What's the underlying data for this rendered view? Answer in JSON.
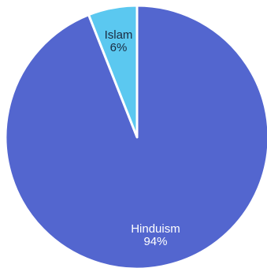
{
  "chart_data": {
    "type": "pie",
    "title": "",
    "slices": [
      {
        "label": "Hinduism",
        "value": 94,
        "display": "94%",
        "color": "#5366cf",
        "text_color": "#ffffff"
      },
      {
        "label": "Islam",
        "value": 6,
        "display": "6%",
        "color": "#5bc8f0",
        "text_color": "#1a2a40"
      }
    ],
    "start_angle_deg": 0,
    "direction": "clockwise",
    "legend": "none",
    "slice_border_color": "#ffffff"
  }
}
